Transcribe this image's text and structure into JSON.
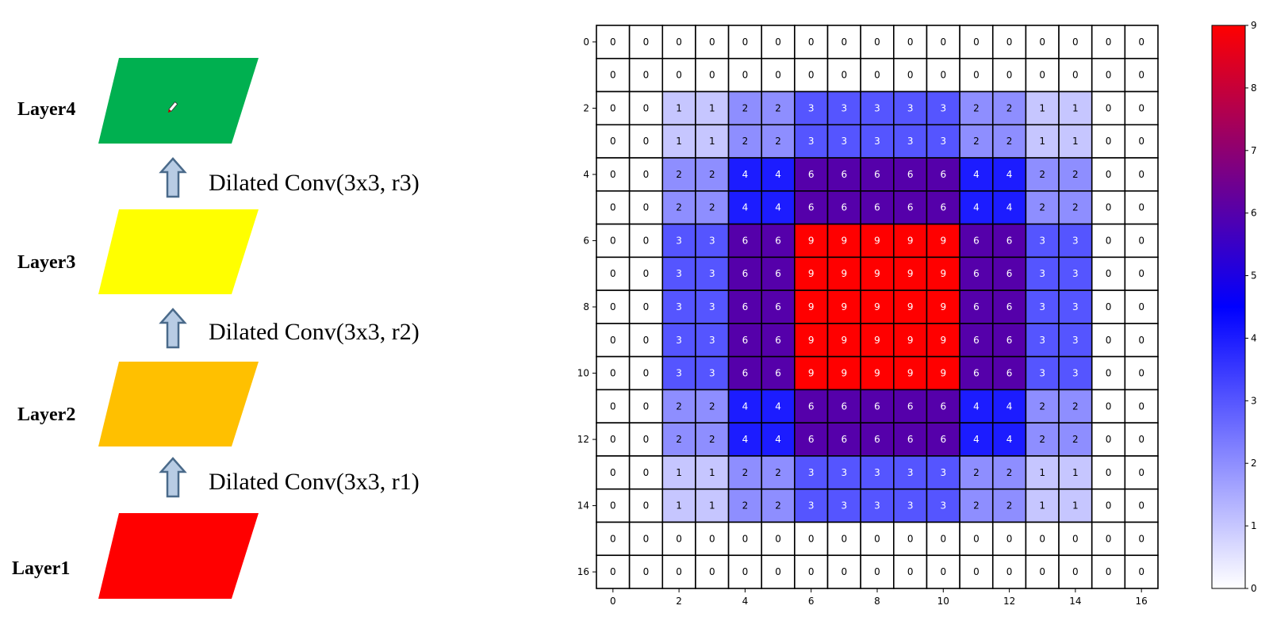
{
  "diagram": {
    "layers": [
      {
        "label": "Layer4",
        "color": "#00b050"
      },
      {
        "label": "Layer3",
        "color": "#ffff00"
      },
      {
        "label": "Layer2",
        "color": "#ffc000"
      },
      {
        "label": "Layer1",
        "color": "#ff0000"
      }
    ],
    "convs": [
      {
        "label": "Dilated Conv(3x3, r3)"
      },
      {
        "label": "Dilated Conv(3x3, r2)"
      },
      {
        "label": "Dilated Conv(3x3, r1)"
      }
    ],
    "arrow_color": "#b8cce4",
    "arrow_border": "#4a6a8a"
  },
  "chart_data": {
    "type": "heatmap",
    "colormap": "bwr",
    "vmin": 0,
    "vmax": 9,
    "annotate": true,
    "grid": true,
    "xticks": [
      0,
      2,
      4,
      6,
      8,
      10,
      12,
      14,
      16
    ],
    "yticks": [
      0,
      2,
      4,
      6,
      8,
      10,
      12,
      14,
      16
    ],
    "colorbar_ticks": [
      0,
      1,
      2,
      3,
      4,
      5,
      6,
      7,
      8,
      9
    ],
    "values": [
      [
        0,
        0,
        0,
        0,
        0,
        0,
        0,
        0,
        0,
        0,
        0,
        0,
        0,
        0,
        0,
        0,
        0
      ],
      [
        0,
        0,
        0,
        0,
        0,
        0,
        0,
        0,
        0,
        0,
        0,
        0,
        0,
        0,
        0,
        0,
        0
      ],
      [
        0,
        0,
        1,
        1,
        2,
        2,
        3,
        3,
        3,
        3,
        3,
        2,
        2,
        1,
        1,
        0,
        0
      ],
      [
        0,
        0,
        1,
        1,
        2,
        2,
        3,
        3,
        3,
        3,
        3,
        2,
        2,
        1,
        1,
        0,
        0
      ],
      [
        0,
        0,
        2,
        2,
        4,
        4,
        6,
        6,
        6,
        6,
        6,
        4,
        4,
        2,
        2,
        0,
        0
      ],
      [
        0,
        0,
        2,
        2,
        4,
        4,
        6,
        6,
        6,
        6,
        6,
        4,
        4,
        2,
        2,
        0,
        0
      ],
      [
        0,
        0,
        3,
        3,
        6,
        6,
        9,
        9,
        9,
        9,
        9,
        6,
        6,
        3,
        3,
        0,
        0
      ],
      [
        0,
        0,
        3,
        3,
        6,
        6,
        9,
        9,
        9,
        9,
        9,
        6,
        6,
        3,
        3,
        0,
        0
      ],
      [
        0,
        0,
        3,
        3,
        6,
        6,
        9,
        9,
        9,
        9,
        9,
        6,
        6,
        3,
        3,
        0,
        0
      ],
      [
        0,
        0,
        3,
        3,
        6,
        6,
        9,
        9,
        9,
        9,
        9,
        6,
        6,
        3,
        3,
        0,
        0
      ],
      [
        0,
        0,
        3,
        3,
        6,
        6,
        9,
        9,
        9,
        9,
        9,
        6,
        6,
        3,
        3,
        0,
        0
      ],
      [
        0,
        0,
        2,
        2,
        4,
        4,
        6,
        6,
        6,
        6,
        6,
        4,
        4,
        2,
        2,
        0,
        0
      ],
      [
        0,
        0,
        2,
        2,
        4,
        4,
        6,
        6,
        6,
        6,
        6,
        4,
        4,
        2,
        2,
        0,
        0
      ],
      [
        0,
        0,
        1,
        1,
        2,
        2,
        3,
        3,
        3,
        3,
        3,
        2,
        2,
        1,
        1,
        0,
        0
      ],
      [
        0,
        0,
        1,
        1,
        2,
        2,
        3,
        3,
        3,
        3,
        3,
        2,
        2,
        1,
        1,
        0,
        0
      ],
      [
        0,
        0,
        0,
        0,
        0,
        0,
        0,
        0,
        0,
        0,
        0,
        0,
        0,
        0,
        0,
        0,
        0
      ],
      [
        0,
        0,
        0,
        0,
        0,
        0,
        0,
        0,
        0,
        0,
        0,
        0,
        0,
        0,
        0,
        0,
        0
      ]
    ]
  }
}
